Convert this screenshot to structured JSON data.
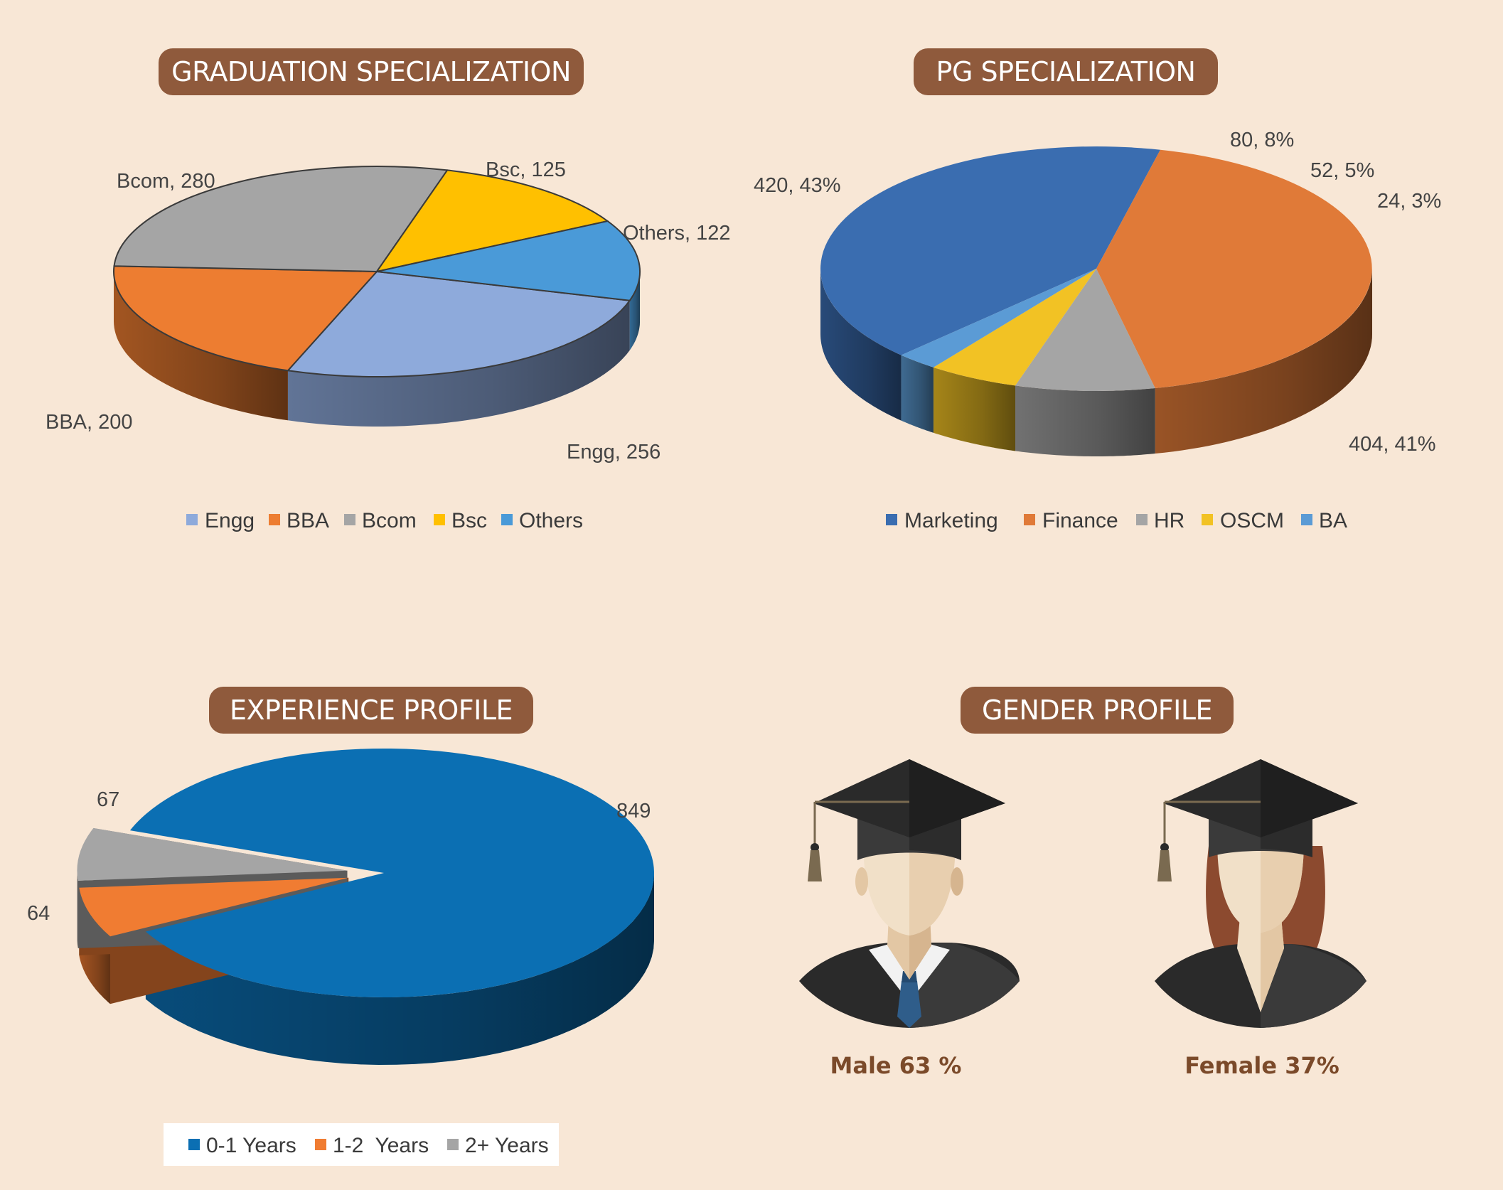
{
  "panels": {
    "graduation": {
      "title": "GRADUATION SPECIALIZATION"
    },
    "pg": {
      "title": "PG SPECIALIZATION"
    },
    "experience": {
      "title": "EXPERIENCE PROFILE"
    },
    "gender": {
      "title": "GENDER PROFILE"
    }
  },
  "chart_data": [
    {
      "type": "pie",
      "style": "3d",
      "title": "GRADUATION SPECIALIZATION",
      "categories": [
        "Engg",
        "BBA",
        "Bcom",
        "Bsc",
        "Others"
      ],
      "values": [
        256,
        200,
        280,
        125,
        122
      ],
      "labels": [
        "Engg, 256",
        "BBA, 200",
        "Bcom, 280",
        "Bsc, 125",
        "Others, 122"
      ],
      "colors": [
        "#8eaadb",
        "#ed7d31",
        "#a5a5a5",
        "#ffc000",
        "#4a9ad8"
      ],
      "legend": [
        "Engg",
        "BBA",
        "Bcom",
        "Bsc",
        "Others"
      ],
      "legend_position": "bottom"
    },
    {
      "type": "pie",
      "style": "3d",
      "title": "PG SPECIALIZATION",
      "categories": [
        "Marketing",
        "Finance",
        "HR",
        "OSCM",
        "BA"
      ],
      "values": [
        404,
        420,
        80,
        52,
        24
      ],
      "percentages": [
        41,
        43,
        8,
        5,
        3
      ],
      "labels": [
        "404, 41%",
        "420, 43%",
        "80, 8%",
        "52, 5%",
        "24, 3%"
      ],
      "colors": [
        "#3a6db0",
        "#e07a38",
        "#a5a5a5",
        "#f2c224",
        "#5b9bd5"
      ],
      "legend": [
        "Marketing",
        "Finance",
        "HR",
        "OSCM",
        "BA"
      ],
      "legend_position": "bottom"
    },
    {
      "type": "pie",
      "style": "3d-exploded",
      "title": "EXPERIENCE PROFILE",
      "categories": [
        "0-1 Years",
        "1-2  Years",
        "2+ Years"
      ],
      "values": [
        849,
        64,
        67
      ],
      "labels": [
        "849",
        "64",
        "67"
      ],
      "colors": [
        "#0b6fb3",
        "#f07c32",
        "#a5a5a5"
      ],
      "legend": [
        "0-1 Years",
        "1-2  Years",
        "2+ Years"
      ],
      "legend_position": "bottom"
    }
  ],
  "gender": {
    "male_label": "Male 63 %",
    "female_label": "Female 37%"
  }
}
